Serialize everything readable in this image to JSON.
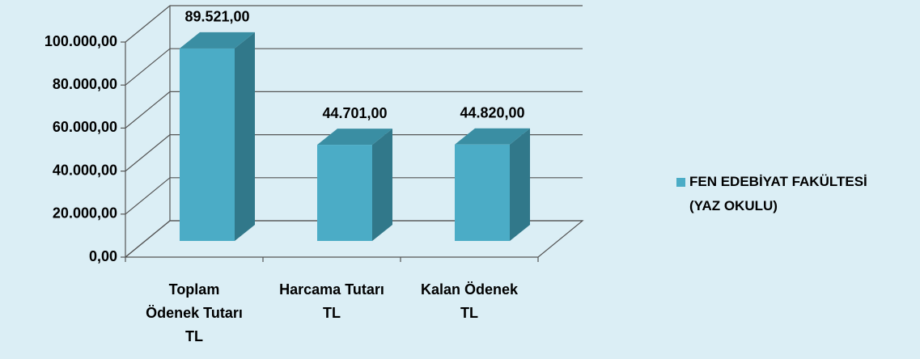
{
  "chart_data": {
    "type": "bar",
    "categories": [
      "Toplam\nÖdenek Tutarı\nTL",
      "Harcama Tutarı\nTL",
      "Kalan Ödenek\nTL"
    ],
    "series": [
      {
        "name": "FEN EDEBİYAT FAKÜLTESİ\n(YAZ OKULU)",
        "color": "#4bacc6",
        "values": [
          89521,
          44701,
          44820
        ],
        "value_labels": [
          "89.521,00",
          "44.701,00",
          "44.820,00"
        ]
      }
    ],
    "ylim": [
      0,
      100000
    ],
    "yticks": [
      {
        "value": 0,
        "label": "0,00"
      },
      {
        "value": 20000,
        "label": "20.000,00"
      },
      {
        "value": 40000,
        "label": "40.000,00"
      },
      {
        "value": 60000,
        "label": "60.000,00"
      },
      {
        "value": 80000,
        "label": "80.000,00"
      },
      {
        "value": 100000,
        "label": "100.000,00"
      }
    ],
    "grid": true,
    "legend": "right"
  }
}
